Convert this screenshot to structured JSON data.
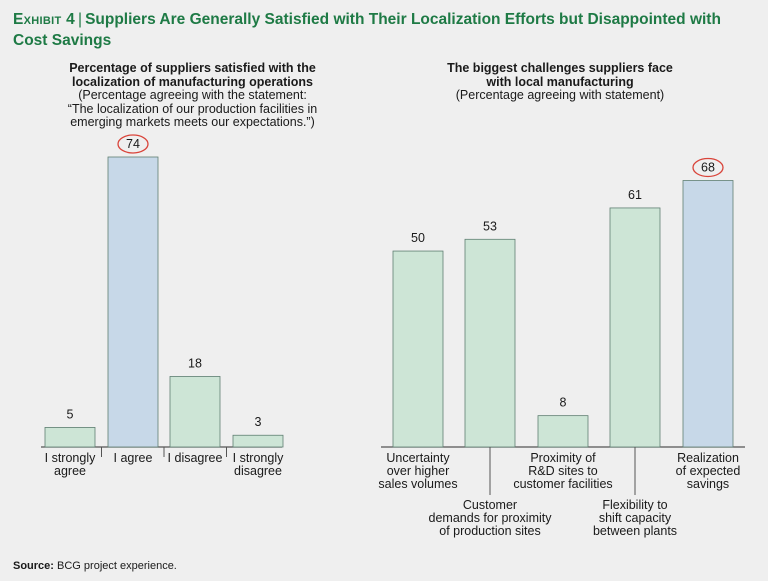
{
  "header": {
    "exhibit_label": "Exhibit 4",
    "title": "Suppliers Are Generally Satisfied with Their Localization Efforts but Disappointed with Cost Savings"
  },
  "colors": {
    "title_green": "#1e7a45",
    "bar_green": "#cde5d6",
    "bar_blue": "#c7d8e8",
    "highlight_circle": "#d9443a",
    "axis": "#555555"
  },
  "chart_data": [
    {
      "type": "bar",
      "title_lines": [
        "Percentage of suppliers satisfied with the",
        "localization of manufacturing operations"
      ],
      "subtitle_lines": [
        "(Percentage agreeing with the statement:",
        "“The localization of our production facilities in",
        "emerging markets meets our expectations.”)"
      ],
      "categories": [
        [
          "I strongly",
          "agree"
        ],
        [
          "I agree"
        ],
        [
          "I disagree"
        ],
        [
          "I strongly",
          "disagree"
        ]
      ],
      "values": [
        5,
        74,
        18,
        3
      ],
      "value_labels": [
        "5",
        "74",
        "18",
        "3"
      ],
      "highlighted": [
        false,
        true,
        false,
        false
      ],
      "bar_colors": [
        "green",
        "blue",
        "green",
        "green"
      ],
      "ylim": [
        0,
        74
      ]
    },
    {
      "type": "bar",
      "title_lines": [
        "The biggest challenges suppliers face",
        "with local manufacturing"
      ],
      "subtitle_lines": [
        "(Percentage agreeing with statement)"
      ],
      "categories": [
        [
          "Uncertainty",
          "over higher",
          "sales volumes"
        ],
        [
          "Customer",
          "demands for proximity",
          "of production sites"
        ],
        [
          "Proximity of",
          "R&D sites to",
          "customer facilities"
        ],
        [
          "Flexibility to",
          "shift capacity",
          "between plants"
        ],
        [
          "Realization",
          "of expected",
          "savings"
        ]
      ],
      "values": [
        50,
        53,
        8,
        61,
        68
      ],
      "value_labels": [
        "50",
        "53",
        "8",
        "61",
        "68"
      ],
      "label_level": [
        "upper",
        "lower",
        "upper",
        "lower",
        "upper"
      ],
      "highlighted": [
        false,
        false,
        false,
        false,
        true
      ],
      "bar_colors": [
        "green",
        "green",
        "green",
        "green",
        "blue"
      ],
      "ylim": [
        0,
        74
      ]
    }
  ],
  "footer": {
    "source_label": "Source:",
    "source_text": "BCG project experience."
  }
}
